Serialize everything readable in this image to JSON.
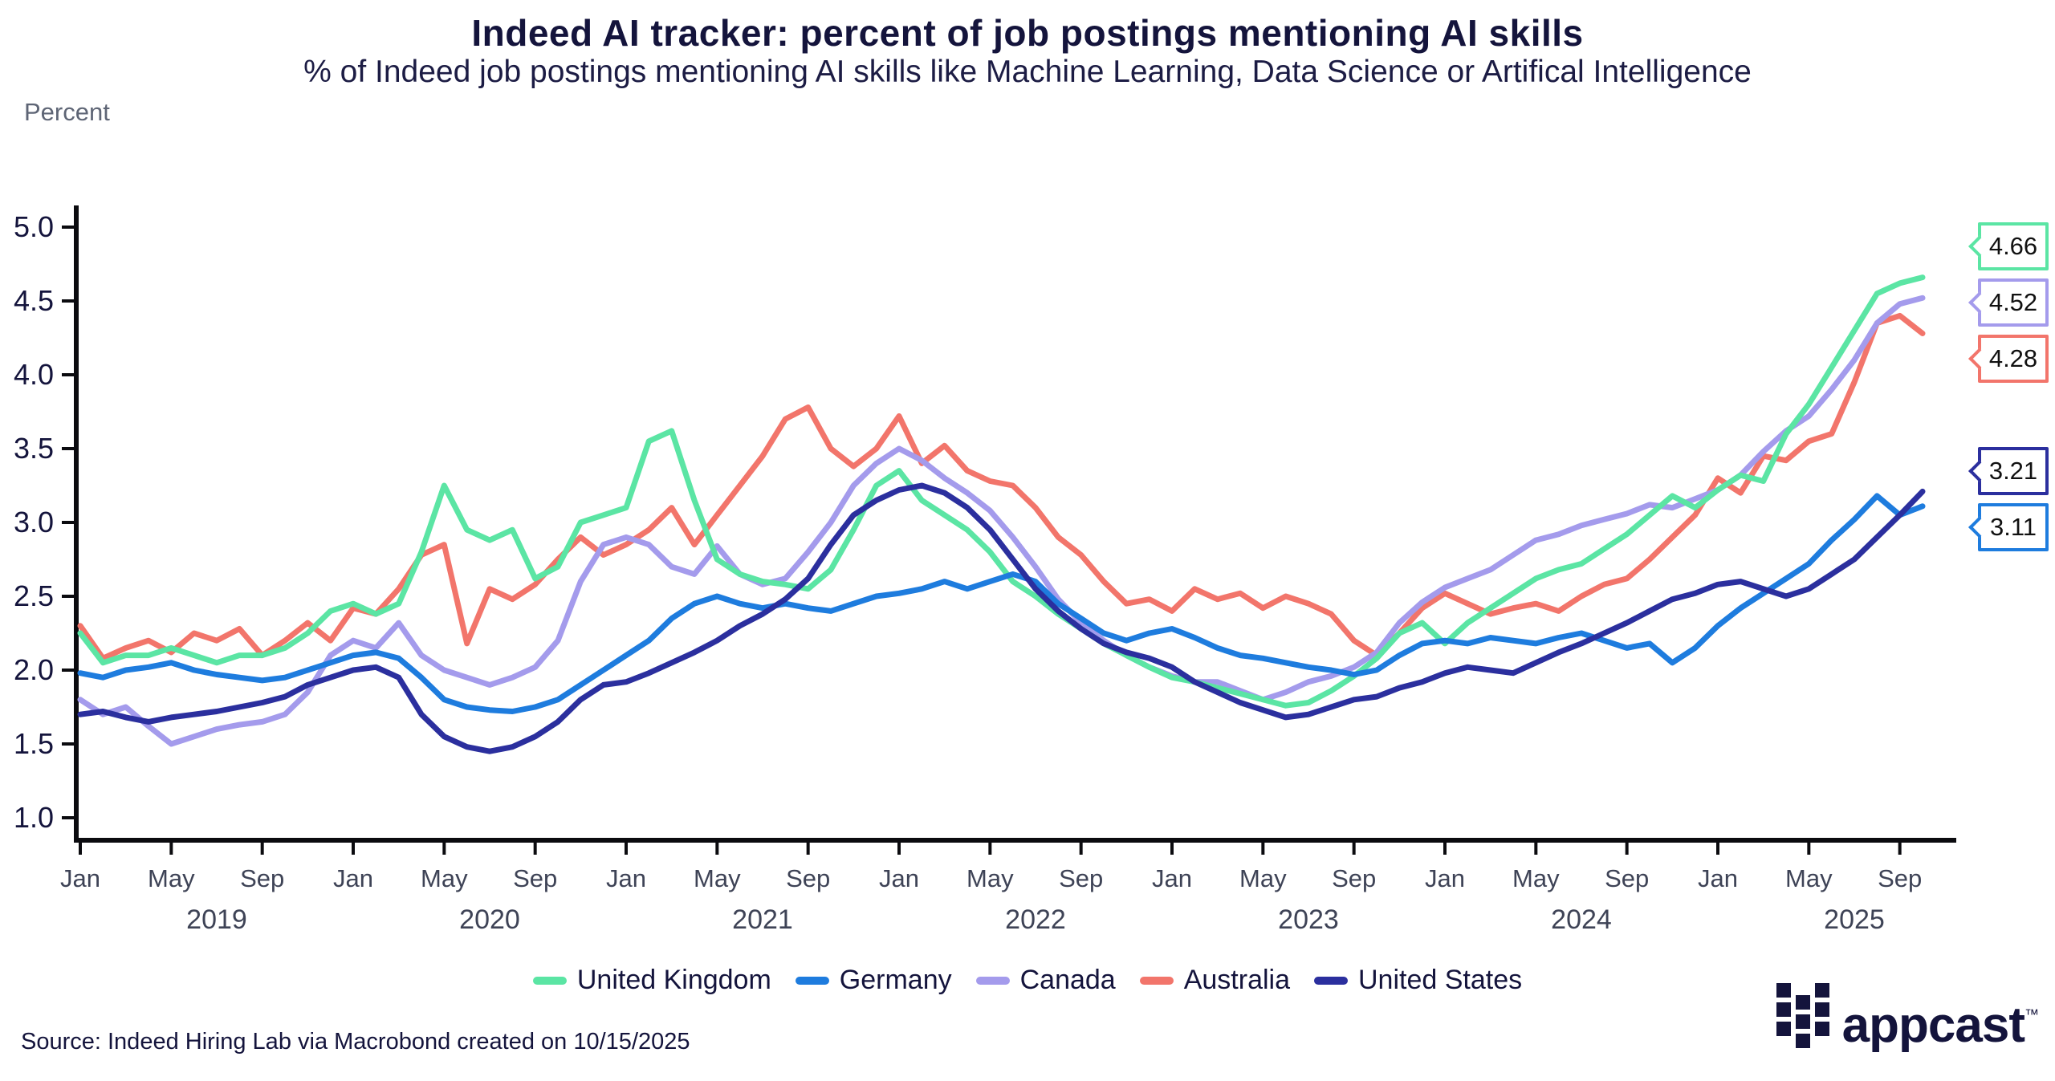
{
  "title": "Indeed AI tracker: percent of job postings mentioning AI skills",
  "subtitle": "% of Indeed job postings mentioning AI skills like Machine Learning, Data Science or Artifical Intelligence",
  "source": "Source: Indeed Hiring Lab via Macrobond created on 10/15/2025",
  "logo": {
    "text": "appcast",
    "tm": "™"
  },
  "y_axis": {
    "label": "Percent",
    "tick_labels": [
      "5.0",
      "4.5",
      "4.0",
      "3.5",
      "3.0",
      "2.5",
      "2.0",
      "1.5",
      "1.0"
    ]
  },
  "x_axis": {
    "month_labels": [
      "Jan",
      "May",
      "Sep"
    ],
    "year_labels": [
      "2019",
      "2020",
      "2021",
      "2022",
      "2023",
      "2024",
      "2025"
    ]
  },
  "chart_data": {
    "type": "line",
    "title": "Indeed AI tracker: percent of job postings mentioning AI skills",
    "ylabel": "Percent",
    "ylim": [
      1.0,
      5.0
    ],
    "y_tick_step": 0.5,
    "grid": false,
    "legend_position": "bottom",
    "x_start": "2019-01",
    "x_end": "2025-10",
    "frequency": "monthly",
    "series": [
      {
        "name": "United Kingdom",
        "color": "#5BE5A4",
        "end_label": "4.66",
        "values": [
          2.25,
          2.05,
          2.1,
          2.1,
          2.15,
          2.1,
          2.05,
          2.1,
          2.1,
          2.15,
          2.25,
          2.4,
          2.45,
          2.38,
          2.45,
          2.8,
          3.25,
          2.95,
          2.88,
          2.95,
          2.62,
          2.7,
          3.0,
          3.05,
          3.1,
          3.55,
          3.62,
          3.15,
          2.75,
          2.65,
          2.6,
          2.58,
          2.55,
          2.68,
          2.95,
          3.25,
          3.35,
          3.15,
          3.05,
          2.95,
          2.8,
          2.6,
          2.5,
          2.38,
          2.28,
          2.18,
          2.1,
          2.02,
          1.95,
          1.92,
          1.88,
          1.84,
          1.8,
          1.76,
          1.78,
          1.86,
          1.96,
          2.08,
          2.25,
          2.32,
          2.18,
          2.32,
          2.42,
          2.52,
          2.62,
          2.68,
          2.72,
          2.82,
          2.92,
          3.05,
          3.18,
          3.1,
          3.22,
          3.32,
          3.28,
          3.6,
          3.8,
          4.05,
          4.3,
          4.55,
          4.62,
          4.66
        ]
      },
      {
        "name": "Germany",
        "color": "#1E7CDE",
        "end_label": "3.11",
        "values": [
          1.98,
          1.95,
          2.0,
          2.02,
          2.05,
          2.0,
          1.97,
          1.95,
          1.93,
          1.95,
          2.0,
          2.05,
          2.1,
          2.12,
          2.08,
          1.95,
          1.8,
          1.75,
          1.73,
          1.72,
          1.75,
          1.8,
          1.9,
          2.0,
          2.1,
          2.2,
          2.35,
          2.45,
          2.5,
          2.45,
          2.42,
          2.45,
          2.42,
          2.4,
          2.45,
          2.5,
          2.52,
          2.55,
          2.6,
          2.55,
          2.6,
          2.65,
          2.6,
          2.45,
          2.35,
          2.25,
          2.2,
          2.25,
          2.28,
          2.22,
          2.15,
          2.1,
          2.08,
          2.05,
          2.02,
          2.0,
          1.97,
          2.0,
          2.1,
          2.18,
          2.2,
          2.18,
          2.22,
          2.2,
          2.18,
          2.22,
          2.25,
          2.2,
          2.15,
          2.18,
          2.05,
          2.15,
          2.3,
          2.42,
          2.52,
          2.62,
          2.72,
          2.88,
          3.02,
          3.18,
          3.05,
          3.11
        ]
      },
      {
        "name": "Canada",
        "color": "#A49BEC",
        "end_label": "4.52",
        "values": [
          1.8,
          1.7,
          1.75,
          1.62,
          1.5,
          1.55,
          1.6,
          1.63,
          1.65,
          1.7,
          1.85,
          2.1,
          2.2,
          2.15,
          2.32,
          2.1,
          2.0,
          1.95,
          1.9,
          1.95,
          2.02,
          2.2,
          2.6,
          2.85,
          2.9,
          2.85,
          2.7,
          2.65,
          2.84,
          2.65,
          2.58,
          2.62,
          2.8,
          3.0,
          3.25,
          3.4,
          3.5,
          3.42,
          3.3,
          3.2,
          3.08,
          2.9,
          2.7,
          2.48,
          2.32,
          2.2,
          2.1,
          2.02,
          1.96,
          1.92,
          1.92,
          1.86,
          1.8,
          1.85,
          1.92,
          1.96,
          2.02,
          2.12,
          2.32,
          2.46,
          2.56,
          2.62,
          2.68,
          2.78,
          2.88,
          2.92,
          2.98,
          3.02,
          3.06,
          3.12,
          3.1,
          3.16,
          3.22,
          3.32,
          3.48,
          3.62,
          3.72,
          3.9,
          4.1,
          4.35,
          4.48,
          4.52
        ]
      },
      {
        "name": "Australia",
        "color": "#F2756B",
        "end_label": "4.28",
        "values": [
          2.3,
          2.08,
          2.15,
          2.2,
          2.12,
          2.25,
          2.2,
          2.28,
          2.1,
          2.2,
          2.32,
          2.2,
          2.42,
          2.38,
          2.55,
          2.78,
          2.85,
          2.18,
          2.55,
          2.48,
          2.58,
          2.75,
          2.9,
          2.78,
          2.85,
          2.95,
          3.1,
          2.85,
          3.05,
          3.25,
          3.45,
          3.7,
          3.78,
          3.5,
          3.38,
          3.5,
          3.72,
          3.4,
          3.52,
          3.35,
          3.28,
          3.25,
          3.1,
          2.9,
          2.78,
          2.6,
          2.45,
          2.48,
          2.4,
          2.55,
          2.48,
          2.52,
          2.42,
          2.5,
          2.45,
          2.38,
          2.2,
          2.1,
          2.25,
          2.42,
          2.52,
          2.45,
          2.38,
          2.42,
          2.45,
          2.4,
          2.5,
          2.58,
          2.62,
          2.75,
          2.9,
          3.05,
          3.3,
          3.2,
          3.45,
          3.42,
          3.55,
          3.6,
          3.95,
          4.35,
          4.4,
          4.28
        ]
      },
      {
        "name": "United States",
        "color": "#2B2F9E",
        "end_label": "3.21",
        "values": [
          1.7,
          1.72,
          1.68,
          1.65,
          1.68,
          1.7,
          1.72,
          1.75,
          1.78,
          1.82,
          1.9,
          1.95,
          2.0,
          2.02,
          1.95,
          1.7,
          1.55,
          1.48,
          1.45,
          1.48,
          1.55,
          1.65,
          1.8,
          1.9,
          1.92,
          1.98,
          2.05,
          2.12,
          2.2,
          2.3,
          2.38,
          2.48,
          2.62,
          2.85,
          3.05,
          3.15,
          3.22,
          3.25,
          3.2,
          3.1,
          2.95,
          2.75,
          2.55,
          2.4,
          2.28,
          2.18,
          2.12,
          2.08,
          2.02,
          1.92,
          1.85,
          1.78,
          1.73,
          1.68,
          1.7,
          1.75,
          1.8,
          1.82,
          1.88,
          1.92,
          1.98,
          2.02,
          2.0,
          1.98,
          2.05,
          2.12,
          2.18,
          2.25,
          2.32,
          2.4,
          2.48,
          2.52,
          2.58,
          2.6,
          2.55,
          2.5,
          2.55,
          2.65,
          2.75,
          2.9,
          3.05,
          3.21
        ]
      }
    ]
  }
}
